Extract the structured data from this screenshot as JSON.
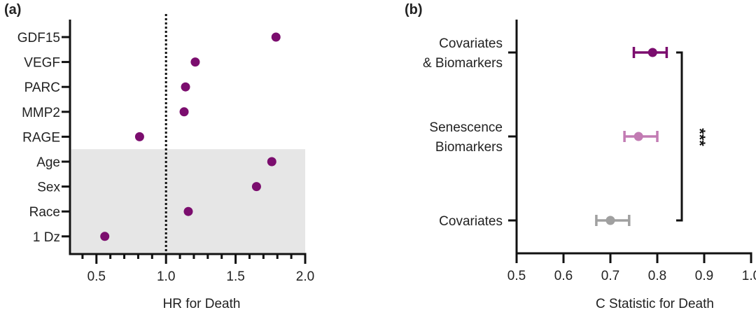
{
  "chart_data": [
    {
      "type": "scatter",
      "panel_label": "(a)",
      "xlabel": "HR for Death",
      "ylabel": "",
      "xlim": [
        0.31,
        2.0
      ],
      "xticks": [
        "0.5",
        "1.0",
        "1.5",
        "2.0"
      ],
      "xtick_values": [
        0.5,
        1.0,
        1.5,
        2.0
      ],
      "minor_tick_step": 0.1,
      "reference_line": 1.0,
      "categories": [
        "GDF15",
        "VEGF",
        "PARC",
        "MMP2",
        "RAGE",
        "Age",
        "Sex",
        "Race",
        "1 Dz"
      ],
      "values": [
        1.79,
        1.21,
        1.14,
        1.13,
        0.81,
        1.76,
        1.65,
        1.16,
        0.56
      ],
      "shaded_categories": [
        "Age",
        "Sex",
        "Race",
        "1 Dz"
      ],
      "point_color": "#7b0d6e",
      "shade_color": "#e6e6e6"
    },
    {
      "type": "scatter",
      "panel_label": "(b)",
      "xlabel": "C Statistic for Death",
      "ylabel": "",
      "xlim": [
        0.5,
        1.0
      ],
      "xticks": [
        "0.5",
        "0.6",
        "0.7",
        "0.8",
        "0.9",
        "1.0"
      ],
      "xtick_values": [
        0.5,
        0.6,
        0.7,
        0.8,
        0.9,
        1.0
      ],
      "categories": [
        [
          "Covariates",
          "& Biomarkers"
        ],
        [
          "Senescence",
          "Biomarkers"
        ],
        [
          "Covariates"
        ]
      ],
      "series": [
        {
          "name": "Covariates & Biomarkers",
          "value": 0.79,
          "ci": [
            0.75,
            0.82
          ],
          "color": "#7b0d6e"
        },
        {
          "name": "Senescence Biomarkers",
          "value": 0.76,
          "ci": [
            0.73,
            0.8
          ],
          "color": "#c27bb3"
        },
        {
          "name": "Covariates",
          "value": 0.7,
          "ci": [
            0.67,
            0.74
          ],
          "color": "#a0a0a0"
        }
      ],
      "annotation": {
        "text": "***",
        "between": [
          "Covariates & Biomarkers",
          "Covariates"
        ]
      }
    }
  ]
}
